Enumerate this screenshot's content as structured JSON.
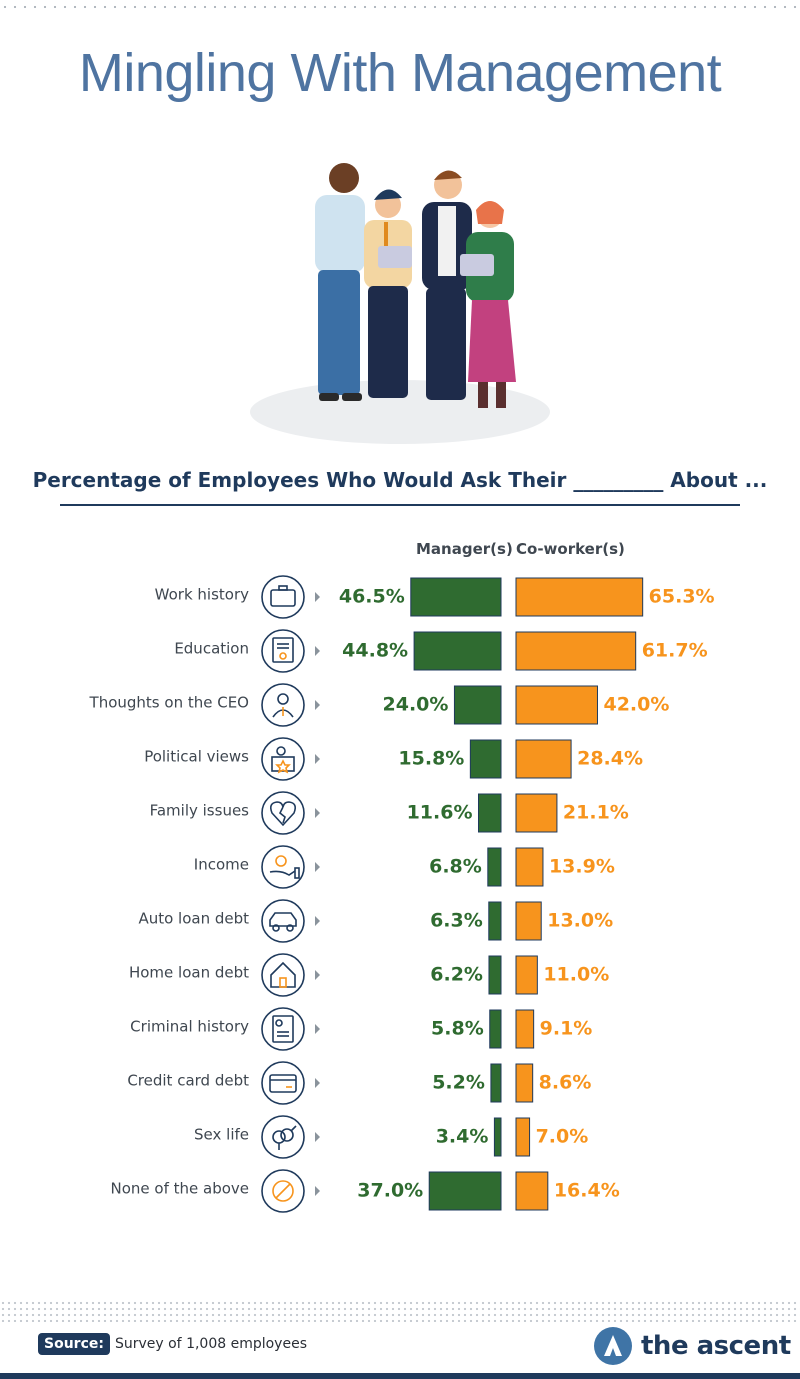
{
  "title": "Mingling With Management",
  "subtitle": "Percentage of Employees Who Would Ask Their _________ About ...",
  "columns": {
    "manager": "Manager(s)",
    "coworker": "Co-worker(s)"
  },
  "colors": {
    "manager": "#2f6b30",
    "coworker": "#f7941d",
    "title": "#4f74a1",
    "navy": "#1f3a5c"
  },
  "source": {
    "label": "Source:",
    "text": "Survey of 1,008 employees"
  },
  "brand": {
    "name": "the ascent"
  },
  "chart_data": {
    "type": "bar",
    "orientation": "horizontal",
    "categories": [
      "Work history",
      "Education",
      "Thoughts on the CEO",
      "Political views",
      "Family issues",
      "Income",
      "Auto loan debt",
      "Home loan debt",
      "Criminal history",
      "Credit card debt",
      "Sex life",
      "None of the above"
    ],
    "icons": [
      "briefcase-icon",
      "diploma-icon",
      "ceo-icon",
      "politics-icon",
      "broken-heart-icon",
      "income-icon",
      "car-icon",
      "house-icon",
      "record-icon",
      "credit-card-icon",
      "gender-icon",
      "none-icon"
    ],
    "series": [
      {
        "name": "Manager(s)",
        "values": [
          46.5,
          44.8,
          24.0,
          15.8,
          11.6,
          6.8,
          6.3,
          6.2,
          5.8,
          5.2,
          3.4,
          37.0
        ],
        "labels": [
          "46.5%",
          "44.8%",
          "24.0%",
          "15.8%",
          "11.6%",
          "6.8%",
          "6.3%",
          "6.2%",
          "5.8%",
          "5.2%",
          "3.4%",
          "37.0%"
        ]
      },
      {
        "name": "Co-worker(s)",
        "values": [
          65.3,
          61.7,
          42.0,
          28.4,
          21.1,
          13.9,
          13.0,
          11.0,
          9.1,
          8.6,
          7.0,
          16.4
        ],
        "labels": [
          "65.3%",
          "61.7%",
          "42.0%",
          "28.4%",
          "21.1%",
          "13.9%",
          "13.0%",
          "11.0%",
          "9.1%",
          "8.6%",
          "7.0%",
          "16.4%"
        ]
      }
    ]
  }
}
